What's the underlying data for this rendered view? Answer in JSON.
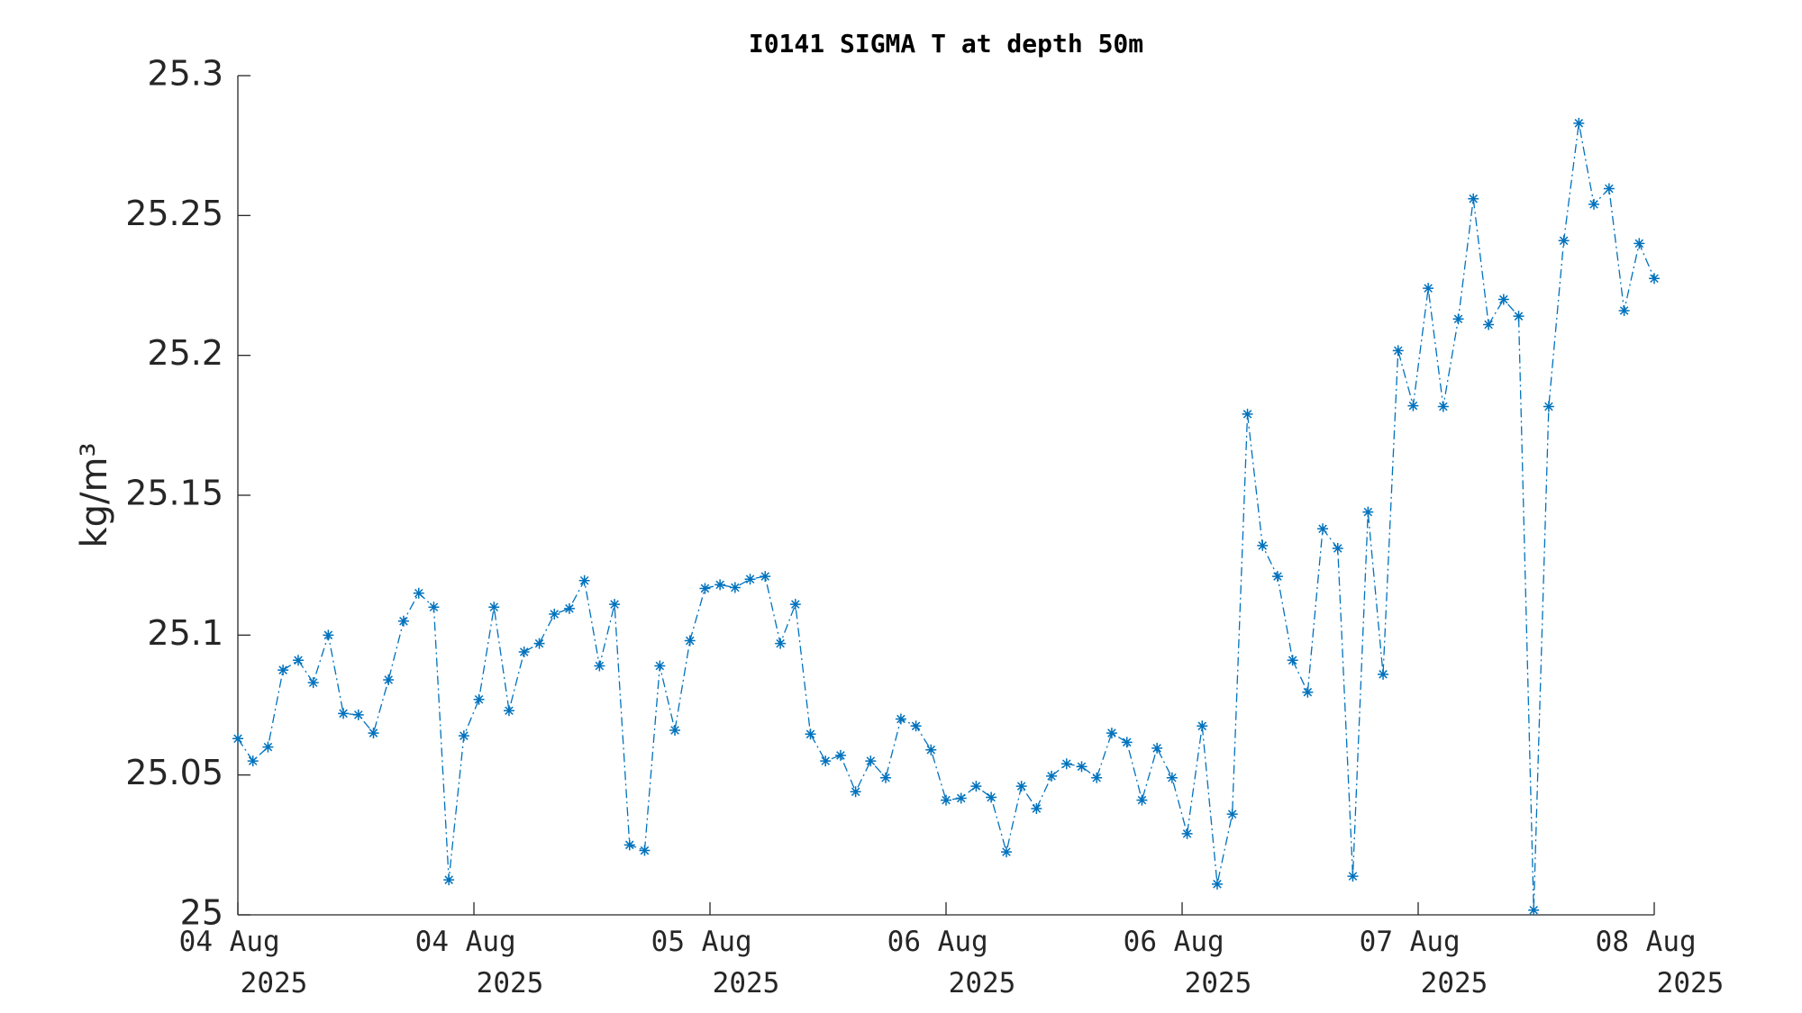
{
  "chart_data": {
    "type": "line",
    "title": "I0141 SIGMA T at depth 50m",
    "ylabel": "kg/m³",
    "x": [
      0,
      1.02,
      2.04,
      3.06,
      4.09,
      5.11,
      6.13,
      7.15,
      8.17,
      9.19,
      10.21,
      11.23,
      12.26,
      13.28,
      14.3,
      15.32,
      16.34,
      17.36,
      18.38,
      19.4,
      20.43,
      21.45,
      22.47,
      23.49,
      24.51,
      25.53,
      26.55,
      27.57,
      28.6,
      29.62,
      30.64,
      31.66,
      32.68,
      33.7,
      34.72,
      35.74,
      36.77,
      37.79,
      38.81,
      39.83,
      40.85,
      41.87,
      42.89,
      43.91,
      44.94,
      45.96,
      46.98,
      48.0,
      49.02,
      50.04,
      51.06,
      52.09,
      53.11,
      54.13,
      55.15,
      56.17,
      57.19,
      58.21,
      59.23,
      60.26,
      61.28,
      62.3,
      63.32,
      64.34,
      65.36,
      66.38,
      67.4,
      68.43,
      69.45,
      70.47,
      71.49,
      72.51,
      73.53,
      74.55,
      75.57,
      76.6,
      77.62,
      78.64,
      79.66,
      80.68,
      81.7,
      82.72,
      83.74,
      84.77,
      85.79,
      86.81,
      87.83,
      88.85,
      89.87,
      90.89,
      91.91,
      92.94,
      93.96,
      94.98,
      96
    ],
    "series": [
      {
        "color": "#0072bd",
        "values": [
          25.063,
          25.055,
          25.06,
          25.0875,
          25.091,
          25.083,
          25.1,
          25.072,
          25.0715,
          25.065,
          25.084,
          25.105,
          25.115,
          25.11,
          25.0125,
          25.064,
          25.077,
          25.11,
          25.073,
          25.094,
          25.097,
          25.1075,
          25.1095,
          25.1195,
          25.089,
          25.111,
          25.025,
          25.023,
          25.089,
          25.066,
          25.098,
          25.1167,
          25.118,
          25.117,
          25.12,
          25.121,
          25.097,
          25.111,
          25.0646,
          25.055,
          25.057,
          25.044,
          25.055,
          25.049,
          25.07,
          25.0675,
          25.059,
          25.041,
          25.0417,
          25.046,
          25.042,
          25.0225,
          25.046,
          25.038,
          25.0496,
          25.054,
          25.053,
          25.049,
          25.065,
          25.0617,
          25.041,
          25.0596,
          25.049,
          25.029,
          25.0675,
          25.011,
          25.036,
          25.179,
          25.132,
          25.121,
          25.091,
          25.0796,
          25.138,
          25.131,
          25.0138,
          25.144,
          25.086,
          25.2017,
          25.182,
          25.224,
          25.1817,
          25.213,
          25.256,
          25.211,
          25.22,
          25.214,
          25.0017,
          25.1817,
          25.241,
          25.283,
          25.254,
          25.2596,
          25.216,
          25.24,
          25.2275
        ]
      }
    ],
    "xlim": [
      0,
      96
    ],
    "xticks": [
      {
        "value": 0,
        "label": "04 Aug 2025"
      },
      {
        "value": 16,
        "label": "04 Aug 2025"
      },
      {
        "value": 32,
        "label": "05 Aug 2025"
      },
      {
        "value": 48,
        "label": "06 Aug 2025"
      },
      {
        "value": 64,
        "label": "06 Aug 2025"
      },
      {
        "value": 80,
        "label": "07 Aug 2025"
      },
      {
        "value": 96,
        "label": "08 Aug 2025"
      }
    ],
    "ylim": [
      25,
      25.3
    ],
    "yticks": [
      25,
      25.05,
      25.1,
      25.15,
      25.2,
      25.25,
      25.3
    ]
  }
}
